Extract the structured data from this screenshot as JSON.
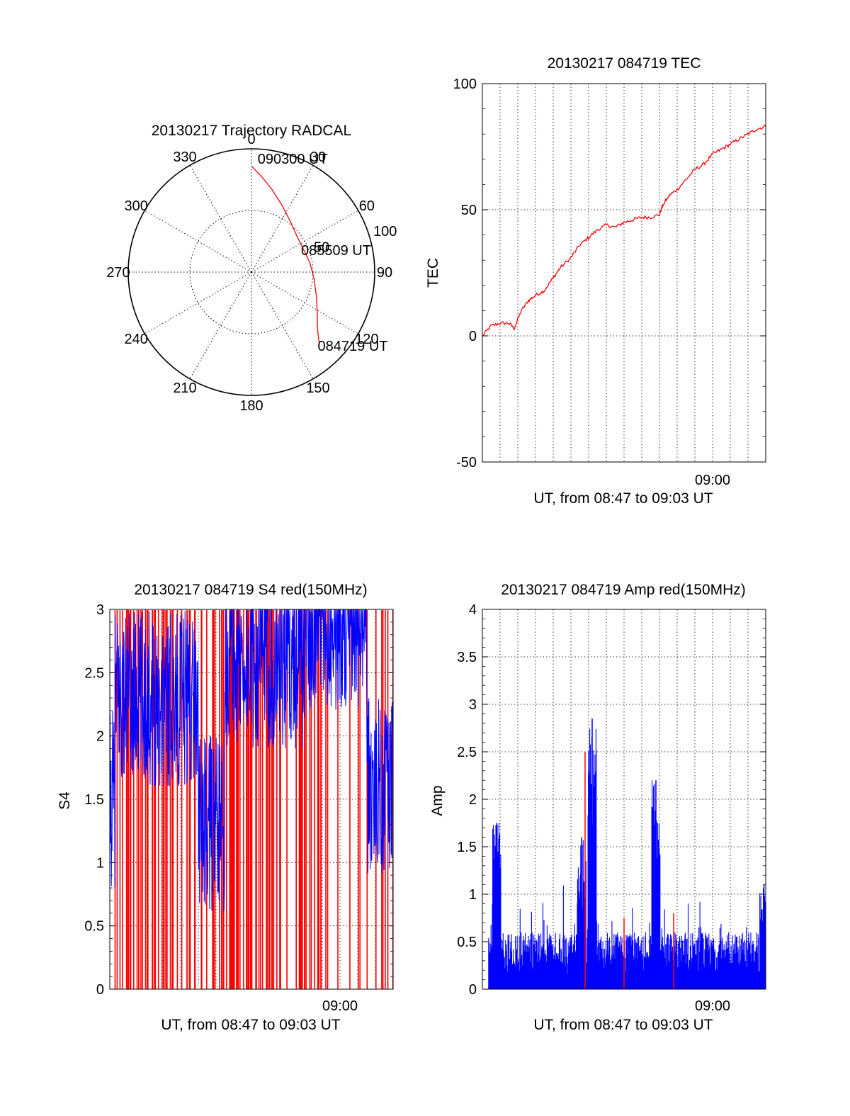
{
  "colors": {
    "red": "#ff0000",
    "blue": "#0000ff",
    "axis": "#000000"
  },
  "chart_data": [
    {
      "type": "polar",
      "title": "20130217 Trajectory RADCAL",
      "azimuth_labels": [
        "0",
        "30",
        "60",
        "90",
        "120",
        "150",
        "180",
        "210",
        "240",
        "270",
        "300",
        "330"
      ],
      "ring_labels": [
        "50",
        "100"
      ],
      "trajectory": {
        "color": "red",
        "points": [
          {
            "az": 0,
            "r": 86
          },
          {
            "az": 6,
            "r": 78
          },
          {
            "az": 14,
            "r": 69
          },
          {
            "az": 24,
            "r": 60
          },
          {
            "az": 37,
            "r": 52
          },
          {
            "az": 52,
            "r": 47
          },
          {
            "az": 66,
            "r": 46
          },
          {
            "az": 81,
            "r": 48
          },
          {
            "az": 96,
            "r": 51
          },
          {
            "az": 110,
            "r": 56
          },
          {
            "az": 122,
            "r": 63
          },
          {
            "az": 131,
            "r": 71
          },
          {
            "az": 136,
            "r": 79
          }
        ]
      },
      "annotations": [
        {
          "text": "090300 UT",
          "az": 6,
          "r": 92
        },
        {
          "text": "085509 UT",
          "az": 69,
          "r": 48
        },
        {
          "text": "084719 UT",
          "az": 136,
          "r": 84
        }
      ]
    },
    {
      "type": "line",
      "title": "20130217 084719 TEC",
      "ylabel": "TEC",
      "xlabel": "UT, from 08:47 to 09:03 UT",
      "ylim": [
        -50,
        100
      ],
      "yticks": [
        -50,
        0,
        50,
        100
      ],
      "xtick_labels": [
        {
          "label": "09:00",
          "minutes": 13
        }
      ],
      "series": [
        {
          "color": "red",
          "x": [
            0,
            0.5,
            1,
            1.5,
            1.8,
            2.2,
            2.6,
            3,
            3.5,
            4,
            4.4,
            5,
            5.5,
            6,
            6.5,
            7,
            7.5,
            8,
            8.5,
            9,
            9.5,
            10,
            10.2,
            10.6,
            11,
            11.5,
            12,
            12.5,
            13,
            13.5,
            14,
            14.5,
            15,
            15.5,
            16
          ],
          "y": [
            0,
            4,
            5,
            5,
            3,
            10,
            14,
            16,
            18,
            23,
            27,
            31,
            36,
            39,
            42,
            44,
            43,
            45,
            46,
            47,
            47,
            48,
            52,
            56,
            58,
            62,
            66,
            68,
            72,
            74,
            76,
            78,
            80,
            82,
            83
          ]
        }
      ]
    },
    {
      "type": "line",
      "title": "20130217 084719 S4 red(150MHz)",
      "ylabel": "S4",
      "xlabel": "UT, from 08:47 to 09:03 UT",
      "ylim": [
        0,
        3
      ],
      "yticks": [
        0,
        0.5,
        1,
        1.5,
        2,
        2.5,
        3
      ],
      "xtick_labels": [
        {
          "label": "09:00",
          "minutes": 13
        }
      ],
      "series": [
        {
          "name": "",
          "color": "red",
          "style": "dense-spikes",
          "x_range": [
            0,
            16
          ]
        },
        {
          "name": "",
          "color": "blue",
          "style": "band",
          "x_range": [
            0,
            16
          ]
        }
      ]
    },
    {
      "type": "line",
      "title": "20130217 084719 Amp red(150MHz)",
      "ylabel": "Amp",
      "xlabel": "UT, from 08:47 to 09:03 UT",
      "ylim": [
        0,
        4
      ],
      "yticks": [
        0,
        0.5,
        1,
        1.5,
        2,
        2.5,
        3,
        3.5,
        4
      ],
      "xtick_labels": [
        {
          "label": "09:00",
          "minutes": 13
        }
      ],
      "series": [
        {
          "name": "",
          "color": "blue",
          "style": "noise",
          "x_range": [
            0,
            16
          ],
          "peaks": [
            {
              "x": 0.8,
              "y": 1.75
            },
            {
              "x": 5.6,
              "y": 1.6
            },
            {
              "x": 6.2,
              "y": 2.85
            },
            {
              "x": 9.8,
              "y": 2.2
            },
            {
              "x": 15.9,
              "y": 1.1
            }
          ]
        },
        {
          "name": "",
          "color": "red",
          "style": "spikes",
          "peaks": [
            {
              "x": 5.8,
              "y": 2.5
            },
            {
              "x": 8.0,
              "y": 0.75
            },
            {
              "x": 10.8,
              "y": 0.8
            }
          ]
        }
      ]
    }
  ]
}
